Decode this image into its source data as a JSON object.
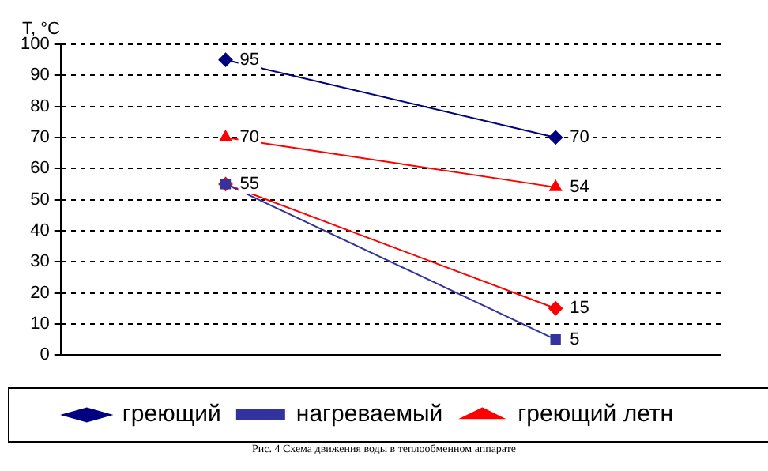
{
  "chart_data": {
    "type": "line",
    "ylabel": "T, °C",
    "categories": [
      null,
      null
    ],
    "series": [
      {
        "name": "греющий",
        "color": "#000080",
        "values": [
          95,
          70
        ],
        "value_labels": [
          "95",
          "70"
        ],
        "marker": "diamond"
      },
      {
        "name": "нагреваемый",
        "color": "#3333a0",
        "values": [
          55,
          5
        ],
        "value_labels": [
          null,
          "5"
        ],
        "marker": "square"
      },
      {
        "name": "греющий летн",
        "color": "#ff0000",
        "values": [
          70,
          54
        ],
        "value_labels": [
          "70",
          "54"
        ],
        "marker": "triangle"
      },
      {
        "color": "#ff0000",
        "values": [
          55,
          15
        ],
        "value_labels": [
          "55",
          "15"
        ],
        "marker": "diamond"
      }
    ],
    "ylim": [
      0,
      100
    ],
    "yticks": [
      0,
      10,
      20,
      30,
      40,
      50,
      60,
      70,
      80,
      90,
      100
    ],
    "grid": "y",
    "legend": "bottom",
    "annotations": [
      "Рис. 4 Схема движения воды в теплообменном аппарате"
    ]
  }
}
